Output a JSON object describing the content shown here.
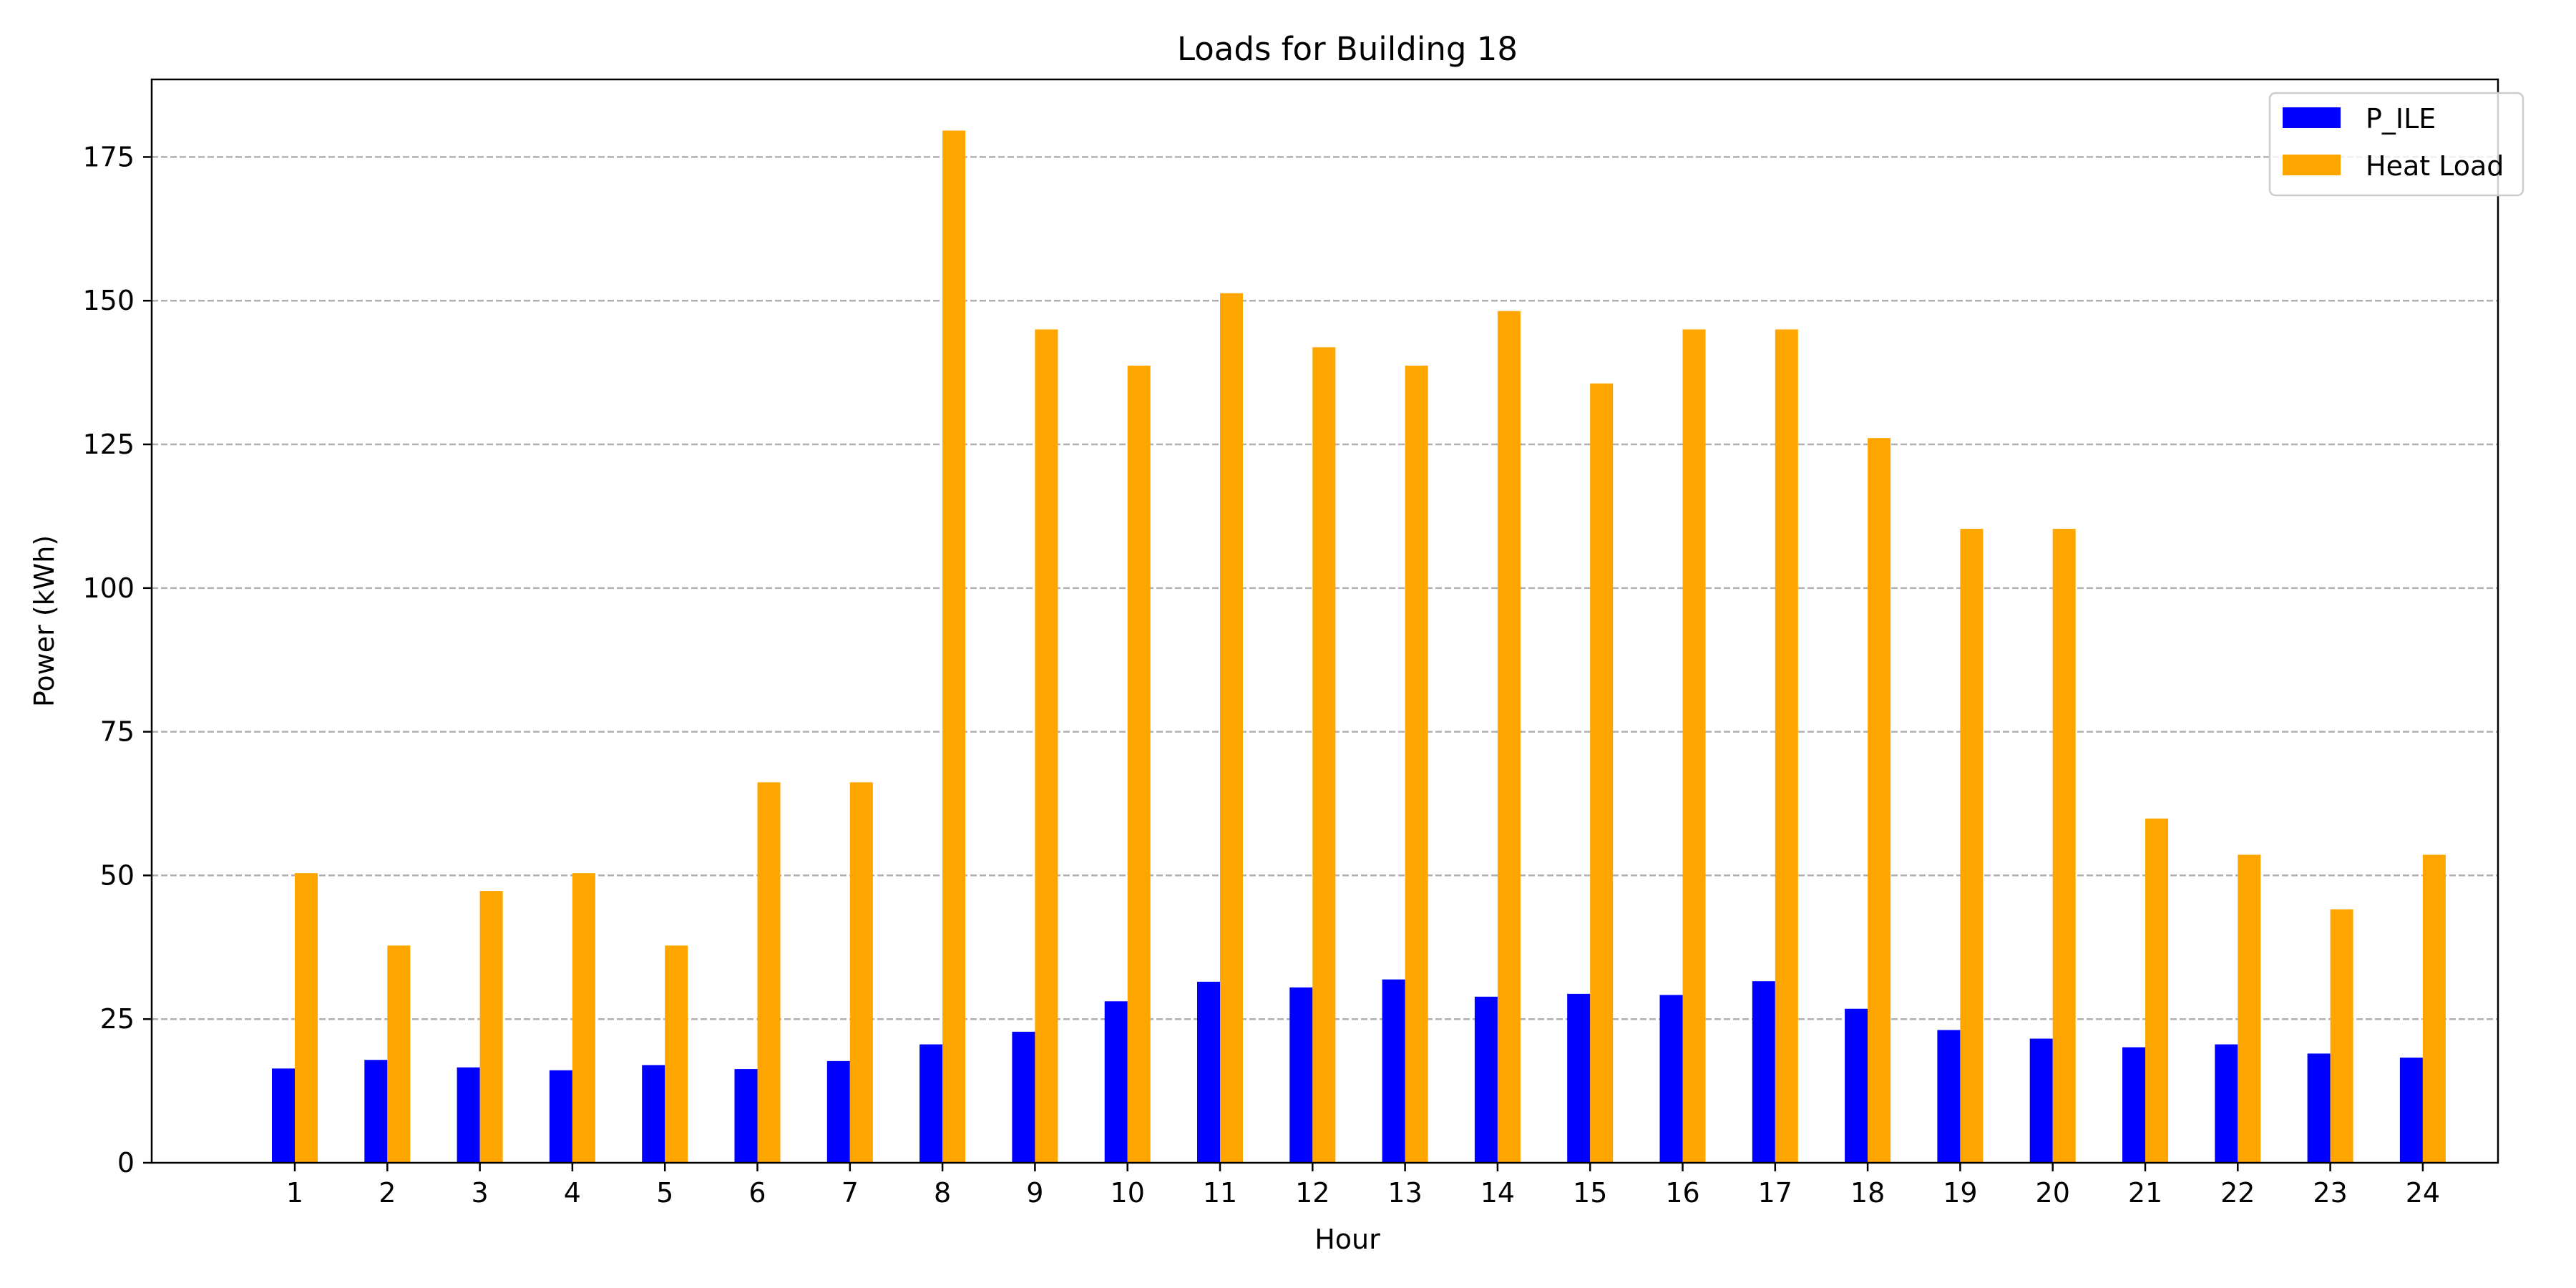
{
  "chart_data": {
    "type": "bar",
    "title": "Loads for Building 18",
    "xlabel": "Hour",
    "ylabel": "Power (kWh)",
    "categories": [
      "1",
      "2",
      "3",
      "4",
      "5",
      "6",
      "7",
      "8",
      "9",
      "10",
      "11",
      "12",
      "13",
      "14",
      "15",
      "16",
      "17",
      "18",
      "19",
      "20",
      "21",
      "22",
      "23",
      "24"
    ],
    "series": [
      {
        "name": "P_ILE",
        "color": "#0000ff",
        "values": [
          16.4,
          17.9,
          16.6,
          16.1,
          17.0,
          16.3,
          17.7,
          20.6,
          22.8,
          28.1,
          31.5,
          30.5,
          31.9,
          28.9,
          29.4,
          29.2,
          31.6,
          26.8,
          23.1,
          21.6,
          20.1,
          20.6,
          19.0,
          18.3
        ]
      },
      {
        "name": "Heat Load",
        "color": "#ffa500",
        "values": [
          50.4,
          37.8,
          47.3,
          50.4,
          37.8,
          66.2,
          66.2,
          179.6,
          145.0,
          138.7,
          151.3,
          141.9,
          138.7,
          148.2,
          135.6,
          145.0,
          145.0,
          126.1,
          110.3,
          110.3,
          59.9,
          53.6,
          44.1,
          53.6
        ]
      }
    ],
    "ylim": [
      0,
      188.5
    ],
    "yticks": [
      0,
      25,
      50,
      75,
      100,
      125,
      150,
      175
    ],
    "grid": "y-dashed",
    "legend_position": "top-right"
  }
}
